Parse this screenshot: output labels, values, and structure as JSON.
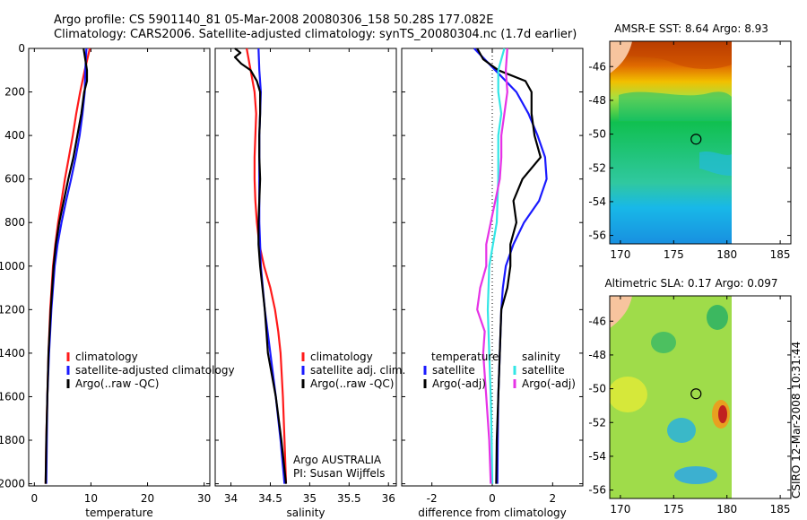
{
  "header": {
    "title_line1": "Argo profile: CS 5901140_81 05-Mar-2008 20080306_158 50.28S 177.082E",
    "title_line2": "Climatology: CARS2006. Satellite-adjusted climatology: synTS_20080304.nc (1.7d earlier)"
  },
  "colors": {
    "climatology": "#ff1a1a",
    "satellite": "#1a1aff",
    "argo": "#000000",
    "sal_satellite": "#33e6e6",
    "sal_argo": "#e633e6",
    "land": "#f7c49e"
  },
  "depth_ticks": [
    "0",
    "200",
    "400",
    "600",
    "800",
    "1000",
    "1200",
    "1400",
    "1600",
    "1800",
    "2000"
  ],
  "chart_data": [
    {
      "type": "line",
      "xlabel": "temperature",
      "xlim": [
        -1,
        31
      ],
      "ylim": [
        2010,
        0
      ],
      "xticks": [
        "0",
        "10",
        "20",
        "30"
      ],
      "legend": [
        "climatology",
        "satellite-adjusted climatology",
        "Argo(..raw -QC)"
      ],
      "series": [
        {
          "name": "climatology",
          "depth": [
            0,
            100,
            200,
            300,
            400,
            500,
            600,
            700,
            800,
            900,
            1000,
            1200,
            1400,
            1600,
            1800,
            2000
          ],
          "values": [
            9.8,
            8.9,
            8.1,
            7.4,
            6.8,
            6.1,
            5.4,
            4.8,
            4.2,
            3.7,
            3.3,
            2.8,
            2.5,
            2.3,
            2.1,
            2.0
          ]
        },
        {
          "name": "satellite-adjusted climatology",
          "depth": [
            0,
            100,
            200,
            300,
            400,
            500,
            600,
            700,
            800,
            900,
            1000,
            1200,
            1400,
            1600,
            1800,
            2000
          ],
          "values": [
            9.2,
            9.0,
            8.9,
            8.5,
            8.0,
            7.3,
            6.5,
            5.6,
            4.8,
            4.1,
            3.6,
            3.0,
            2.6,
            2.3,
            2.2,
            2.1
          ]
        },
        {
          "name": "Argo(..raw -QC)",
          "depth": [
            0,
            50,
            100,
            150,
            200,
            300,
            400,
            500,
            600,
            700,
            800,
            900,
            1000,
            1200,
            1400,
            1600,
            1800,
            2000
          ],
          "values": [
            8.7,
            9.0,
            9.3,
            9.3,
            8.8,
            8.3,
            7.6,
            6.9,
            6.0,
            5.2,
            4.4,
            3.8,
            3.4,
            2.9,
            2.5,
            2.3,
            2.1,
            2.0
          ]
        }
      ]
    },
    {
      "type": "line",
      "xlabel": "salinity",
      "xlim": [
        33.8,
        36.1
      ],
      "ylim": [
        2010,
        0
      ],
      "xticks": [
        "34",
        "34.5",
        "35",
        "35.5",
        "36"
      ],
      "legend": [
        "climatology",
        "satellite adj. clim.",
        "Argo(..raw -QC)"
      ],
      "annotation": [
        "Argo AUSTRALIA",
        "PI: Susan Wijffels"
      ],
      "series": [
        {
          "name": "climatology",
          "depth": [
            0,
            100,
            200,
            300,
            400,
            500,
            600,
            700,
            800,
            900,
            1000,
            1100,
            1200,
            1300,
            1400,
            1600,
            1800,
            2000
          ],
          "values": [
            34.2,
            34.25,
            34.3,
            34.32,
            34.31,
            34.3,
            34.3,
            34.31,
            34.33,
            34.36,
            34.42,
            34.5,
            34.56,
            34.6,
            34.63,
            34.66,
            34.68,
            34.7
          ]
        },
        {
          "name": "satellite adj. clim.",
          "depth": [
            0,
            100,
            200,
            300,
            400,
            500,
            600,
            700,
            800,
            900,
            1000,
            1200,
            1400,
            1600,
            1800,
            2000
          ],
          "values": [
            34.35,
            34.36,
            34.38,
            34.37,
            34.36,
            34.36,
            34.36,
            34.36,
            34.36,
            34.37,
            34.38,
            34.43,
            34.5,
            34.57,
            34.63,
            34.68
          ]
        },
        {
          "name": "Argo(..raw -QC)",
          "depth": [
            0,
            20,
            40,
            70,
            100,
            150,
            200,
            300,
            400,
            500,
            600,
            700,
            800,
            900,
            1000,
            1100,
            1200,
            1300,
            1400,
            1500,
            1600,
            1800,
            2000
          ],
          "values": [
            34.05,
            34.12,
            34.05,
            34.13,
            34.25,
            34.33,
            34.37,
            34.37,
            34.36,
            34.36,
            34.37,
            34.36,
            34.35,
            34.35,
            34.37,
            34.4,
            34.43,
            34.45,
            34.47,
            34.52,
            34.57,
            34.64,
            34.7
          ]
        }
      ]
    },
    {
      "type": "line",
      "xlabel": "difference from climatology",
      "xlim": [
        -3,
        3
      ],
      "ylim": [
        2010,
        0
      ],
      "xticks": [
        "-2",
        "0",
        "2"
      ],
      "legend_temperature": {
        "title": "temperature",
        "items": [
          "satellite",
          "Argo(-adj)"
        ]
      },
      "legend_salinity": {
        "title": "salinity",
        "items": [
          "satellite",
          "Argo(-adj)"
        ]
      },
      "series": [
        {
          "name": "temperature satellite",
          "depth": [
            0,
            100,
            200,
            300,
            400,
            500,
            600,
            700,
            800,
            900,
            1000,
            1100,
            1200,
            1400,
            1600,
            1800,
            2000
          ],
          "values": [
            -0.6,
            0.1,
            0.8,
            1.2,
            1.5,
            1.75,
            1.8,
            1.55,
            1.05,
            0.7,
            0.45,
            0.35,
            0.3,
            0.25,
            0.2,
            0.18,
            0.17
          ]
        },
        {
          "name": "temperature Argo(-adj)",
          "depth": [
            0,
            50,
            100,
            150,
            200,
            300,
            400,
            500,
            600,
            700,
            800,
            900,
            1000,
            1100,
            1200,
            1400,
            1600,
            1800,
            2000
          ],
          "values": [
            -0.5,
            -0.3,
            0.2,
            1.1,
            1.3,
            1.3,
            1.4,
            1.6,
            1.0,
            0.7,
            0.8,
            0.6,
            0.6,
            0.5,
            0.3,
            0.25,
            0.2,
            0.15,
            0.13
          ]
        },
        {
          "name": "salinity satellite",
          "depth": [
            0,
            100,
            200,
            300,
            400,
            600,
            800,
            1000,
            1200,
            1400,
            1600,
            1800,
            2000
          ],
          "values": [
            0.4,
            0.2,
            0.2,
            0.3,
            0.2,
            0.2,
            0.15,
            -0.1,
            -0.15,
            -0.1,
            -0.05,
            -0.02,
            0.0
          ]
        },
        {
          "name": "salinity Argo(-adj)",
          "depth": [
            0,
            100,
            200,
            300,
            400,
            500,
            600,
            700,
            800,
            900,
            1000,
            1100,
            1200,
            1300,
            1400,
            1600,
            1800,
            2000
          ],
          "values": [
            0.5,
            0.45,
            0.5,
            0.4,
            0.3,
            0.3,
            0.25,
            0.1,
            -0.05,
            -0.2,
            -0.2,
            -0.4,
            -0.5,
            -0.25,
            -0.3,
            -0.2,
            -0.1,
            -0.05
          ]
        }
      ]
    },
    {
      "type": "heatmap",
      "title": "AMSR-E SST: 8.64 Argo: 8.93",
      "xlim": [
        169,
        186
      ],
      "ylim": [
        -56.5,
        -44.5
      ],
      "xticks": [
        "170",
        "175",
        "180",
        "185"
      ],
      "yticks": [
        "-46",
        "-48",
        "-50",
        "-52",
        "-54",
        "-56"
      ],
      "marker": {
        "lon": 177.1,
        "lat": -50.3
      }
    },
    {
      "type": "heatmap",
      "title": "Altimetric SLA: 0.17 Argo: 0.097",
      "xlim": [
        169,
        186
      ],
      "ylim": [
        -56.5,
        -44.5
      ],
      "xticks": [
        "170",
        "175",
        "180",
        "185"
      ],
      "yticks": [
        "-46",
        "-48",
        "-50",
        "-52",
        "-54",
        "-56"
      ],
      "marker": {
        "lon": 177.1,
        "lat": -50.3
      }
    }
  ],
  "footer": {
    "credit": "CSIRO 12-Mar-2008 10:31:44"
  }
}
